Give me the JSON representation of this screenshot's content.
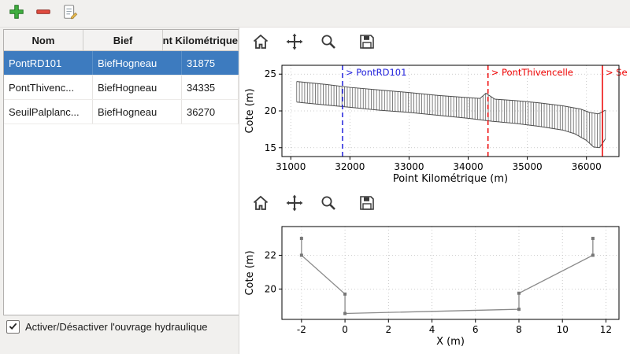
{
  "main_toolbar": {
    "icons": [
      "add-icon",
      "remove-icon",
      "edit-icon"
    ]
  },
  "table": {
    "columns": [
      "Nom",
      "Bief",
      "Point Kilométrique"
    ],
    "rows": [
      {
        "nom": "PontRD101",
        "bief": "BiefHogneau",
        "pk": "31875",
        "selected": true
      },
      {
        "nom": "PontThivenc...",
        "bief": "BiefHogneau",
        "pk": "34335",
        "selected": false
      },
      {
        "nom": "SeuilPalplanc...",
        "bief": "BiefHogneau",
        "pk": "36270",
        "selected": false
      }
    ]
  },
  "checkbox": {
    "label": "Activer/Désactiver l'ouvrage hydraulique",
    "checked": true
  },
  "chart_toolbar": {
    "icons": [
      "home-icon",
      "pan-icon",
      "zoom-icon",
      "save-icon"
    ]
  },
  "colors": {
    "selection": "#3d7bbf",
    "annotation_blue": "#2222dd",
    "annotation_red": "#ee0000",
    "profile_line": "#555555",
    "section_line": "#8a8a8a",
    "add_green": "#3fae3f",
    "remove_red": "#e04b3f"
  },
  "chart_data": [
    {
      "type": "line",
      "variant": "longitudinal-profile-comb",
      "title": "",
      "xlabel": "Point Kilométrique (m)",
      "ylabel": "Cote (m)",
      "xlim": [
        30850,
        36550
      ],
      "ylim": [
        13.8,
        26.2
      ],
      "xticks": [
        31000,
        32000,
        33000,
        34000,
        35000,
        36000
      ],
      "yticks": [
        15,
        20,
        25
      ],
      "grid": true,
      "comb": {
        "step": 45,
        "top": [
          [
            31100,
            24.0
          ],
          [
            31600,
            23.6
          ],
          [
            32000,
            23.2
          ],
          [
            32500,
            22.85
          ],
          [
            33000,
            22.5
          ],
          [
            33500,
            22.1
          ],
          [
            34000,
            21.8
          ],
          [
            34200,
            21.7
          ],
          [
            34300,
            22.4
          ],
          [
            34450,
            21.6
          ],
          [
            34800,
            21.4
          ],
          [
            35200,
            21.1
          ],
          [
            35600,
            20.7
          ],
          [
            35900,
            20.25
          ],
          [
            36050,
            19.8
          ],
          [
            36200,
            19.6
          ],
          [
            36320,
            20.1
          ]
        ],
        "bottom": [
          [
            31100,
            21.2
          ],
          [
            31600,
            20.8
          ],
          [
            32000,
            20.5
          ],
          [
            32500,
            20.1
          ],
          [
            33000,
            19.8
          ],
          [
            33500,
            19.4
          ],
          [
            34000,
            19.0
          ],
          [
            34400,
            18.6
          ],
          [
            34800,
            18.3
          ],
          [
            35200,
            17.9
          ],
          [
            35600,
            17.4
          ],
          [
            35800,
            16.9
          ],
          [
            36000,
            16.0
          ],
          [
            36120,
            15.1
          ],
          [
            36220,
            15.0
          ],
          [
            36320,
            16.2
          ]
        ]
      },
      "annotations": [
        {
          "label": "> PontRD101",
          "x": 31875,
          "color": "#2222dd",
          "dash": "6 4"
        },
        {
          "label": "> PontThivencelle",
          "x": 34335,
          "color": "#ee0000",
          "dash": "6 4"
        },
        {
          "label": "> SeuilPalplanches",
          "x": 36270,
          "color": "#ee0000",
          "dash": "0"
        }
      ]
    },
    {
      "type": "line",
      "variant": "cross-section",
      "title": "",
      "xlabel": "X (m)",
      "ylabel": "Cote (m)",
      "xlim": [
        -2.9,
        12.6
      ],
      "ylim": [
        18.2,
        23.7
      ],
      "xticks": [
        -2,
        0,
        2,
        4,
        6,
        8,
        10,
        12
      ],
      "yticks": [
        20,
        22
      ],
      "grid": true,
      "series": [
        {
          "name": "section",
          "color": "#8a8a8a",
          "marker": true,
          "x": [
            -2,
            -2,
            0,
            0,
            8,
            8,
            11.4,
            11.4
          ],
          "y": [
            23,
            22,
            19.7,
            18.55,
            18.8,
            19.75,
            22,
            23
          ]
        }
      ]
    }
  ]
}
